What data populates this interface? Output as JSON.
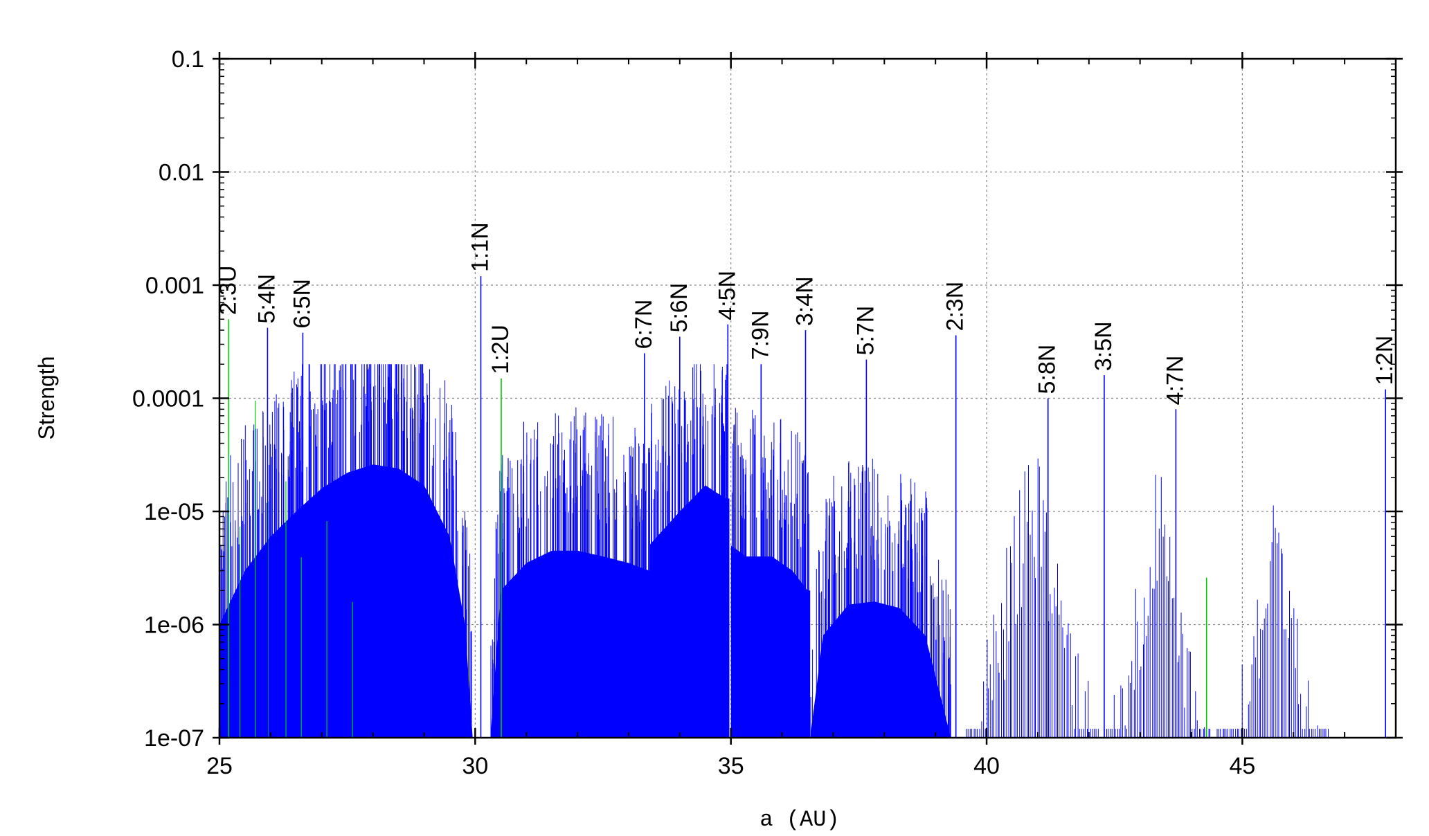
{
  "chart_data": {
    "type": "bar",
    "title": "",
    "xlabel": "a (AU)",
    "ylabel": "Strength",
    "xlim": [
      25,
      48
    ],
    "ylim": [
      1e-07,
      0.1
    ],
    "yscale": "log",
    "grid": true,
    "x_ticks": [
      25,
      30,
      35,
      40,
      45
    ],
    "x_tick_labels": [
      "25",
      "30",
      "35",
      "40",
      "45"
    ],
    "y_ticks": [
      1e-07,
      1e-06,
      1e-05,
      0.0001,
      0.001,
      0.01,
      0.1
    ],
    "y_tick_labels": [
      "1e-07",
      "1e-06",
      "1e-05",
      "0.0001",
      "0.001",
      "0.01",
      "0.1"
    ],
    "colors": {
      "neptune": "#0000ff",
      "uranus": "#00cc00",
      "axes": "#000000",
      "grid": "#888888"
    },
    "series": [
      {
        "values_note_free": true,
        "color": "#0000ff",
        "points": [
          {
            "x": 25.94,
            "y": 0.00042
          },
          {
            "x": 26.63,
            "y": 0.00038
          },
          {
            "x": 30.11,
            "y": 0.0012
          },
          {
            "x": 33.31,
            "y": 0.00025
          },
          {
            "x": 34.0,
            "y": 0.00035
          },
          {
            "x": 34.94,
            "y": 0.00045
          },
          {
            "x": 35.59,
            "y": 0.0002
          },
          {
            "x": 36.46,
            "y": 0.0004
          },
          {
            "x": 37.65,
            "y": 0.00022
          },
          {
            "x": 39.4,
            "y": 0.00036
          },
          {
            "x": 41.2,
            "y": 0.0001
          },
          {
            "x": 42.3,
            "y": 0.00016
          },
          {
            "x": 43.7,
            "y": 8e-05
          },
          {
            "x": 47.8,
            "y": 0.00012
          }
        ]
      },
      {
        "color": "#00cc00",
        "points": [
          {
            "x": 25.18,
            "y": 0.0005
          },
          {
            "x": 30.51,
            "y": 0.00015
          },
          {
            "x": 44.3,
            "y": 2.6e-06
          }
        ]
      }
    ],
    "annotations": [
      {
        "text": "2:3U",
        "x": 25.18,
        "y": 0.0005
      },
      {
        "text": "5:4N",
        "x": 25.94,
        "y": 0.00042
      },
      {
        "text": "6:5N",
        "x": 26.63,
        "y": 0.00038
      },
      {
        "text": "1:1N",
        "x": 30.11,
        "y": 0.0012
      },
      {
        "text": "1:2U",
        "x": 30.51,
        "y": 0.00015
      },
      {
        "text": "6:7N",
        "x": 33.31,
        "y": 0.00025
      },
      {
        "text": "5:6N",
        "x": 34.0,
        "y": 0.00035
      },
      {
        "text": "4:5N",
        "x": 34.94,
        "y": 0.00045
      },
      {
        "text": "7:9N",
        "x": 35.59,
        "y": 0.0002
      },
      {
        "text": "3:4N",
        "x": 36.46,
        "y": 0.0004
      },
      {
        "text": "5:7N",
        "x": 37.65,
        "y": 0.00022
      },
      {
        "text": "2:3N",
        "x": 39.4,
        "y": 0.00036
      },
      {
        "text": "5:8N",
        "x": 41.2,
        "y": 0.0001
      },
      {
        "text": "3:5N",
        "x": 42.3,
        "y": 0.00016
      },
      {
        "text": "4:7N",
        "x": 43.7,
        "y": 8e-05
      },
      {
        "text": "1:2N",
        "x": 47.8,
        "y": 0.00012
      }
    ],
    "bands": [
      {
        "from": 25.0,
        "to": 29.95,
        "envelope": [
          [
            25.0,
            1e-06
          ],
          [
            25.5,
            3e-06
          ],
          [
            26.0,
            6e-06
          ],
          [
            26.5,
            1e-05
          ],
          [
            27.0,
            1.6e-05
          ],
          [
            27.5,
            2.2e-05
          ],
          [
            28.0,
            2.6e-05
          ],
          [
            28.5,
            2.4e-05
          ],
          [
            29.0,
            1.7e-05
          ],
          [
            29.5,
            6e-06
          ],
          [
            29.8,
            1e-06
          ],
          [
            29.95,
            1e-07
          ]
        ]
      },
      {
        "from": 30.3,
        "to": 33.4,
        "envelope": [
          [
            30.3,
            1e-07
          ],
          [
            30.5,
            2e-06
          ],
          [
            31.0,
            3.5e-06
          ],
          [
            31.5,
            4.5e-06
          ],
          [
            32.0,
            4.5e-06
          ],
          [
            32.5,
            4e-06
          ],
          [
            33.0,
            3.5e-06
          ],
          [
            33.4,
            3e-06
          ]
        ]
      },
      {
        "from": 33.4,
        "to": 34.97,
        "envelope": [
          [
            33.4,
            5e-06
          ],
          [
            34.0,
            1e-05
          ],
          [
            34.5,
            1.7e-05
          ],
          [
            34.9,
            1.3e-05
          ]
        ]
      },
      {
        "from": 35.0,
        "to": 36.55,
        "envelope": [
          [
            35.0,
            5e-06
          ],
          [
            35.3,
            4e-06
          ],
          [
            35.8,
            4e-06
          ],
          [
            36.2,
            3e-06
          ],
          [
            36.5,
            2e-06
          ]
        ]
      },
      {
        "from": 36.55,
        "to": 39.3,
        "envelope": [
          [
            36.55,
            1e-07
          ],
          [
            36.8,
            8e-07
          ],
          [
            37.3,
            1.5e-06
          ],
          [
            37.8,
            1.6e-06
          ],
          [
            38.3,
            1.4e-06
          ],
          [
            38.8,
            8e-07
          ],
          [
            39.3,
            1e-07
          ]
        ]
      }
    ]
  }
}
